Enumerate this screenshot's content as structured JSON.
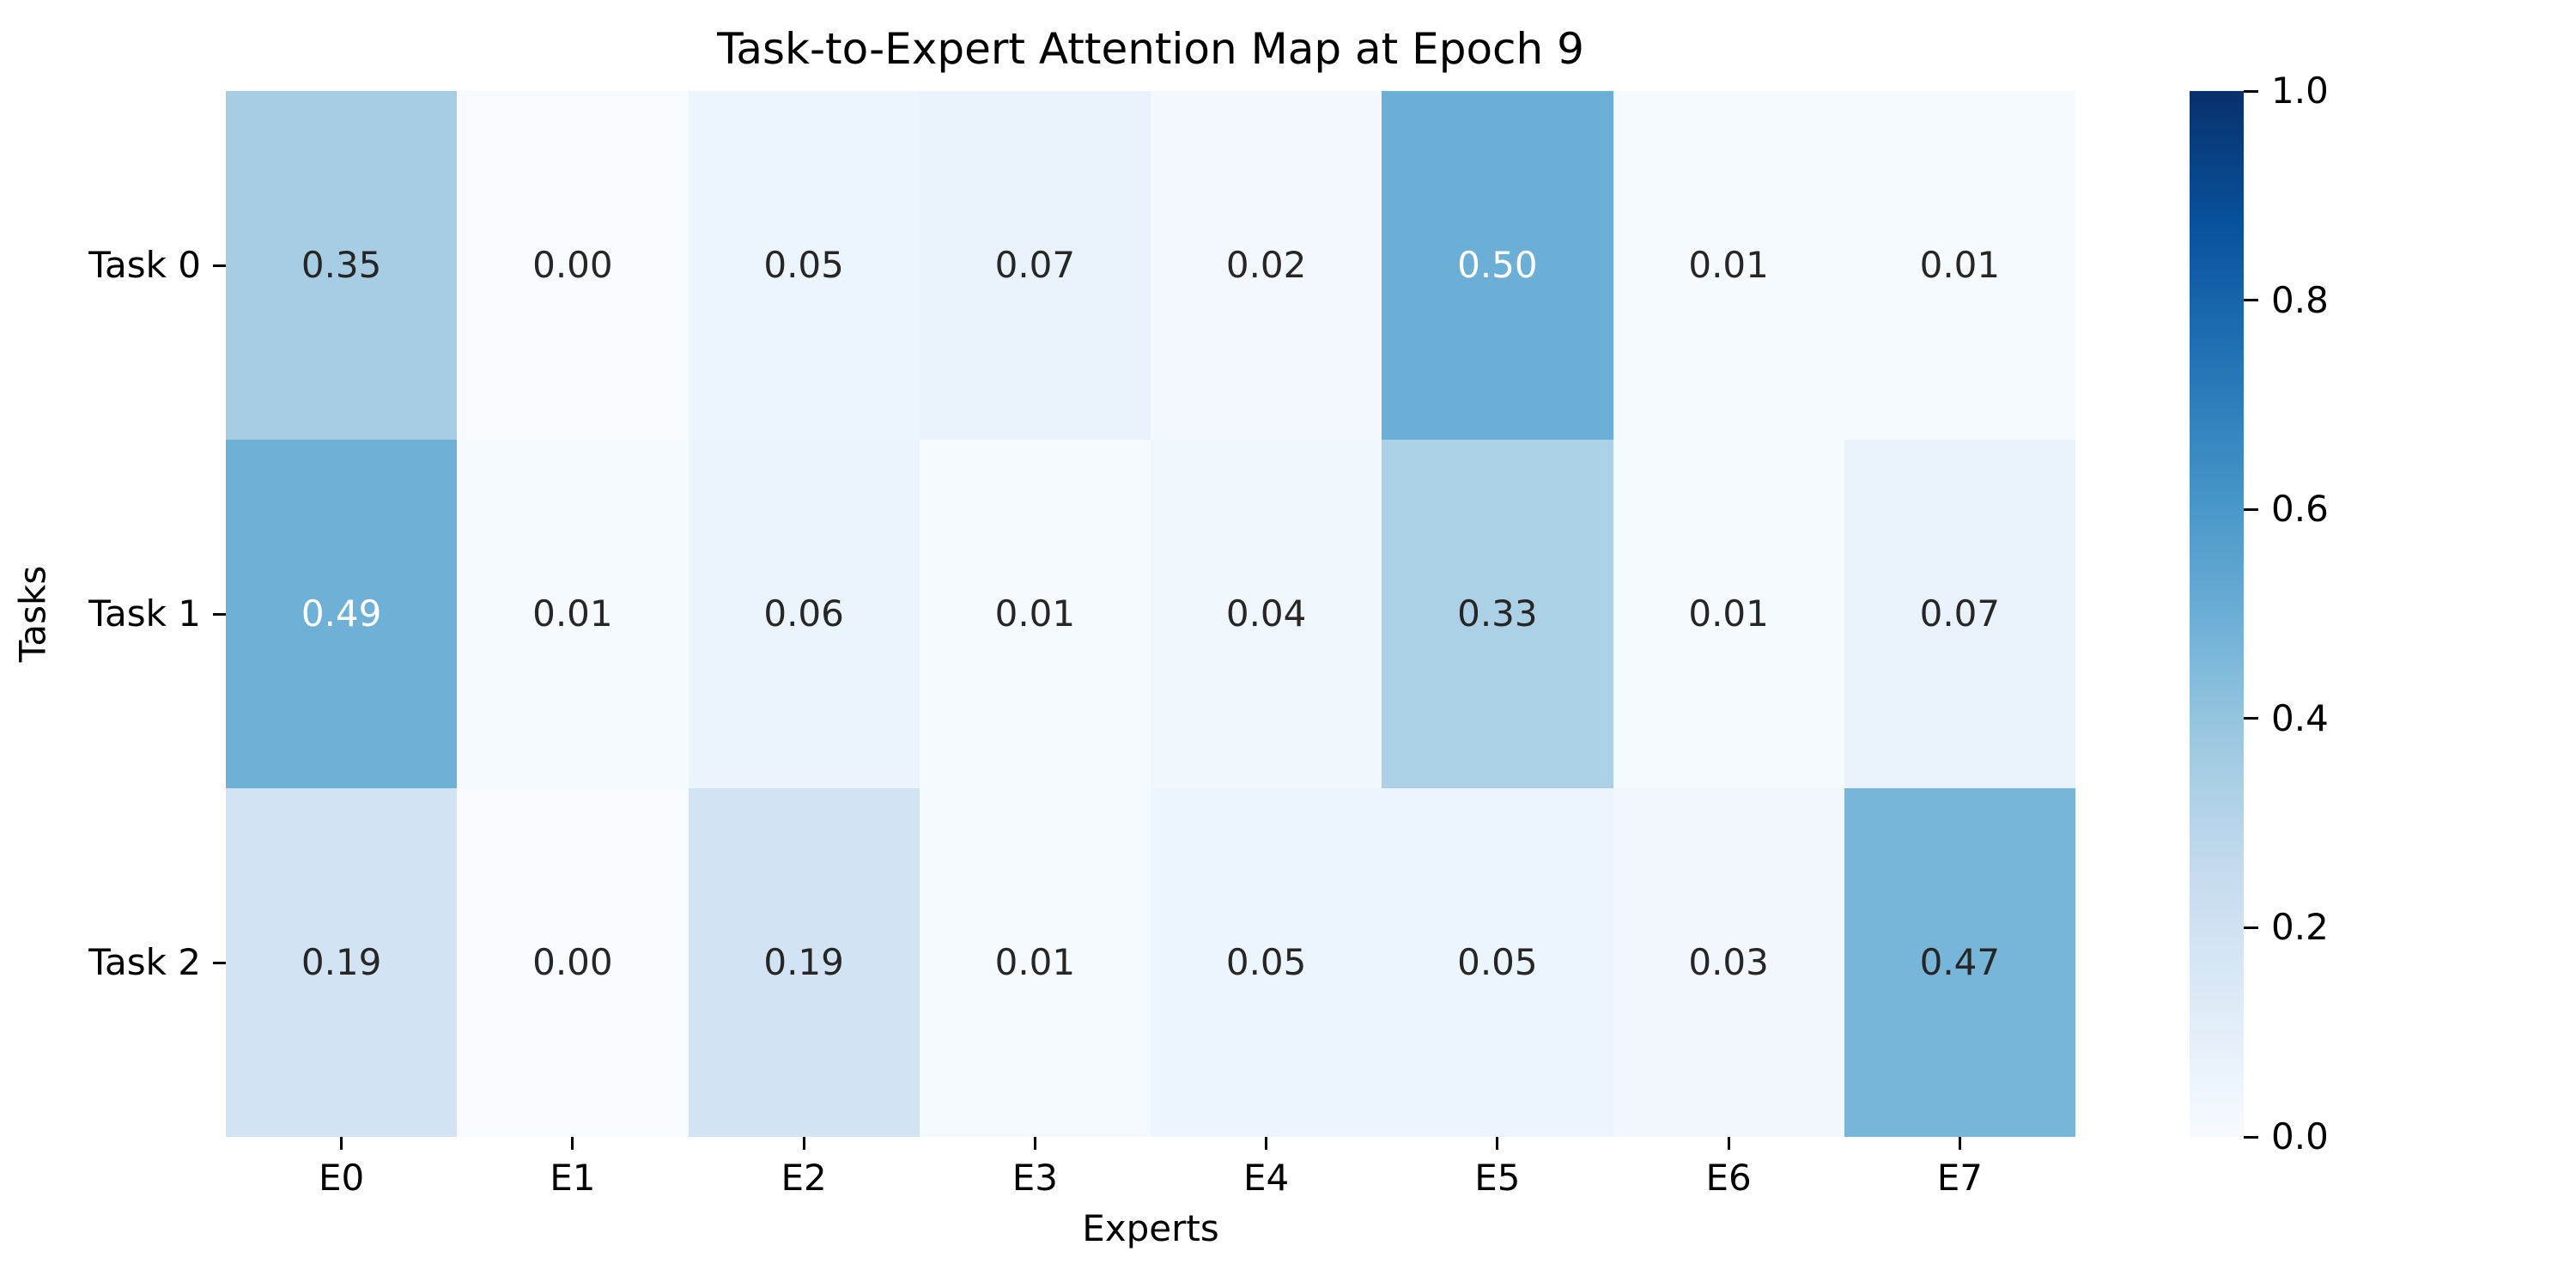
{
  "figure": {
    "background": "#ffffff"
  },
  "chart_data": {
    "type": "heatmap",
    "title": "Task-to-Expert Attention Map at Epoch 9",
    "xlabel": "Experts",
    "ylabel": "Tasks",
    "row_labels": [
      "Task 0",
      "Task 1",
      "Task 2"
    ],
    "col_labels": [
      "E0",
      "E1",
      "E2",
      "E3",
      "E4",
      "E5",
      "E6",
      "E7"
    ],
    "values": [
      [
        0.35,
        0.0,
        0.05,
        0.07,
        0.02,
        0.5,
        0.01,
        0.01
      ],
      [
        0.49,
        0.01,
        0.06,
        0.01,
        0.04,
        0.33,
        0.01,
        0.07
      ],
      [
        0.19,
        0.0,
        0.19,
        0.01,
        0.05,
        0.05,
        0.03,
        0.47
      ]
    ],
    "annotation_decimals": 2,
    "vmin": 0.0,
    "vmax": 1.0,
    "colormap": "Blues",
    "colormap_stops": [
      "#f7fbff",
      "#deebf7",
      "#c6dbef",
      "#9ecae1",
      "#6baed6",
      "#4292c6",
      "#2171b5",
      "#08519c",
      "#08306b"
    ],
    "colorbar_ticks": [
      0.0,
      0.2,
      0.4,
      0.6,
      0.8,
      1.0
    ],
    "colorbar_tick_decimals": 1,
    "annotation_colors": {
      "dark": "#262626",
      "light": "#ffffff"
    },
    "grid": false,
    "legend_position": "right-colorbar"
  }
}
